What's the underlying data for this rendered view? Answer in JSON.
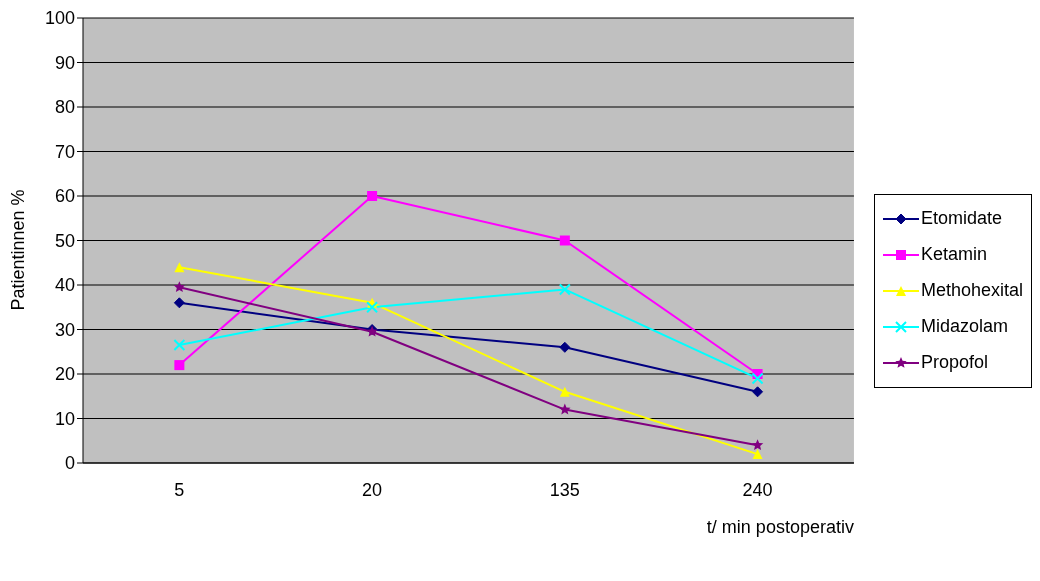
{
  "chart_data": {
    "type": "line",
    "ylabel": "Patientinnen %",
    "xlabel": "t/ min postoperativ",
    "categories": [
      "5",
      "20",
      "135",
      "240"
    ],
    "ylim": [
      0,
      100
    ],
    "yticks": [
      0,
      10,
      20,
      30,
      40,
      50,
      60,
      70,
      80,
      90,
      100
    ],
    "grid": "y",
    "legend": "right",
    "line_style": "solid",
    "series": [
      {
        "name": "Etomidate",
        "color": "#000080",
        "marker": "diamond",
        "values": [
          36,
          30,
          26,
          16
        ]
      },
      {
        "name": "Ketamin",
        "color": "#ff00ff",
        "marker": "square",
        "values": [
          22,
          60,
          50,
          20
        ]
      },
      {
        "name": "Methohexital",
        "color": "#ffff00",
        "marker": "triangle",
        "values": [
          44,
          36,
          16,
          2
        ]
      },
      {
        "name": "Midazolam",
        "color": "#00ffff",
        "marker": "cross",
        "values": [
          26.5,
          35,
          39,
          19
        ]
      },
      {
        "name": "Propofol",
        "color": "#800080",
        "marker": "star",
        "values": [
          39.5,
          29.5,
          12,
          4
        ]
      }
    ]
  }
}
